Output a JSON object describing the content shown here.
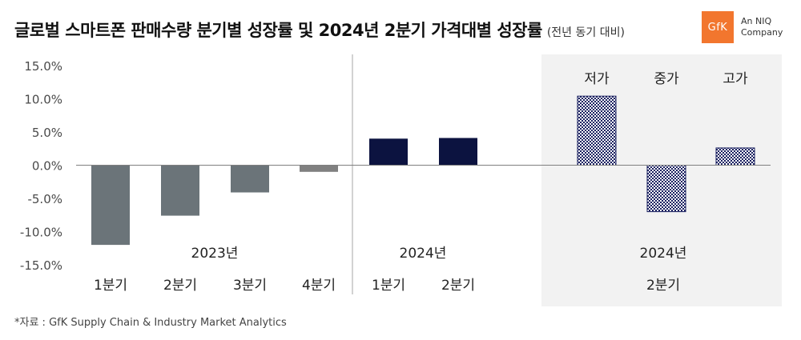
{
  "title": "글로벌 스마트폰 판매수량 분기별 성장률 및 2024년 2분기 가격대별 성장률",
  "subtitle": "(전년 동기 대비)",
  "logo": {
    "mark": "GfK",
    "tagline_line1": "An NIQ",
    "tagline_line2": "Company",
    "color": "#f2762e"
  },
  "source": "*자료 : GfK Supply Chain & Industry Market Analytics",
  "chart_data": {
    "type": "bar",
    "ylim": [
      -15,
      15
    ],
    "yticks": [
      "15.0%",
      "10.0%",
      "5.0%",
      "0.0%",
      "-5.0%",
      "-10.0%",
      "-15.0%"
    ],
    "ytick_values": [
      15,
      10,
      5,
      0,
      -5,
      -10,
      -15
    ],
    "grid": false,
    "groups": [
      {
        "label": "2023년",
        "categories": [
          "1분기",
          "2분기",
          "3분기",
          "4분기"
        ],
        "values": [
          -12.0,
          -7.6,
          -4.1,
          -1.0
        ],
        "colors": [
          "#6b7479",
          "#6b7479",
          "#6b7479",
          "#808080"
        ],
        "pattern": false
      },
      {
        "label": "2024년",
        "categories": [
          "1분기",
          "2분기"
        ],
        "values": [
          4.0,
          4.1
        ],
        "colors": [
          "#0c1340",
          "#0c1340"
        ],
        "pattern": false
      },
      {
        "label": "2024년",
        "sublabel": "2분기",
        "categories": [
          "저가",
          "중가",
          "고가"
        ],
        "values": [
          10.4,
          -7.0,
          2.6
        ],
        "colors": [
          "#1a2060",
          "#1a2060",
          "#1a2060"
        ],
        "pattern": true
      }
    ]
  }
}
